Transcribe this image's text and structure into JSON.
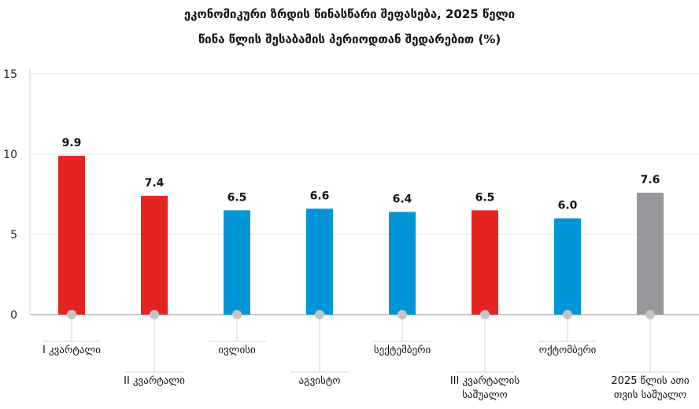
{
  "chart_data": {
    "type": "bar",
    "title": "ეკონომიკური ზრდის წინასწარი შეფასება, 2025 წელი",
    "subtitle": "წინა წლის შესაბამის პერიოდთან შედარებით (%)",
    "xlabel": "",
    "ylabel": "",
    "ylim": [
      0,
      15
    ],
    "yticks": [
      0,
      5,
      10,
      15
    ],
    "grid": true,
    "categories": [
      "I კვარტალი",
      "II კვარტალი",
      "ივლისი",
      "აგვისტო",
      "სექტემბერი",
      "III კვარტალის\nსაშუალო",
      "ოქტომბერი",
      "2025 წლის ათი\nთვის საშუალო"
    ],
    "values": [
      9.9,
      7.4,
      6.5,
      6.6,
      6.4,
      6.5,
      6.0,
      7.6
    ],
    "value_labels": [
      "9.9",
      "7.4",
      "6.5",
      "6.6",
      "6.4",
      "6.5",
      "6.0",
      "7.6"
    ],
    "bar_types": [
      "quarter",
      "quarter",
      "month",
      "month",
      "month",
      "quarter",
      "month",
      "annual"
    ],
    "colors": {
      "quarter": "#e52421",
      "month": "#0095d6",
      "annual": "#98989c"
    }
  }
}
